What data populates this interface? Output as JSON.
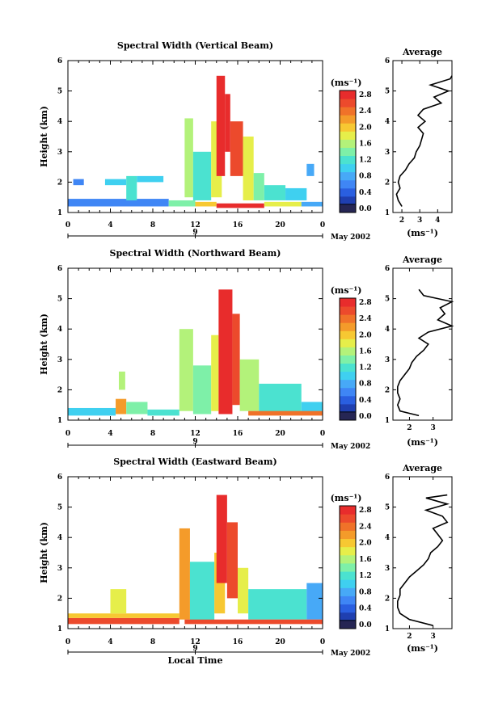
{
  "chart_data": [
    {
      "type": "heatmap",
      "title": "Spectral Width (Vertical Beam)",
      "xlabel": "",
      "ylabel": "Height (km)",
      "xlim": [
        0,
        24
      ],
      "ylim": [
        1,
        6
      ],
      "xticks": [
        "0",
        "4",
        "8",
        "12",
        "16",
        "20",
        "0"
      ],
      "yticks": [
        "1",
        "2",
        "3",
        "4",
        "5",
        "6"
      ],
      "date_marker": "9",
      "date_label": "May 2002",
      "units": "(ms⁻¹)",
      "colorbar_ticks": [
        "0.0",
        "0.4",
        "0.8",
        "1.2",
        "1.6",
        "2.0",
        "2.4",
        "2.8"
      ],
      "colorbar_range": [
        0,
        3.0
      ],
      "regions": [
        {
          "x0": 0.0,
          "x1": 9.5,
          "y0": 1.2,
          "y1": 1.45,
          "v": 0.7
        },
        {
          "x0": 9.5,
          "x1": 12.0,
          "y0": 1.2,
          "y1": 1.4,
          "v": 1.6
        },
        {
          "x0": 12.0,
          "x1": 14.0,
          "y0": 1.2,
          "y1": 1.35,
          "v": 2.2
        },
        {
          "x0": 14.0,
          "x1": 18.5,
          "y0": 1.15,
          "y1": 1.3,
          "v": 2.9
        },
        {
          "x0": 18.5,
          "x1": 22.0,
          "y0": 1.2,
          "y1": 1.35,
          "v": 2.0
        },
        {
          "x0": 22.0,
          "x1": 24.0,
          "y0": 1.2,
          "y1": 1.35,
          "v": 0.8
        },
        {
          "x0": 0.5,
          "x1": 1.5,
          "y0": 1.9,
          "y1": 2.1,
          "v": 0.7
        },
        {
          "x0": 3.5,
          "x1": 5.5,
          "y0": 1.9,
          "y1": 2.1,
          "v": 1.1
        },
        {
          "x0": 5.5,
          "x1": 6.5,
          "y0": 1.4,
          "y1": 2.2,
          "v": 1.3
        },
        {
          "x0": 6.5,
          "x1": 9.0,
          "y0": 2.0,
          "y1": 2.2,
          "v": 1.0
        },
        {
          "x0": 11.0,
          "x1": 11.8,
          "y0": 1.5,
          "y1": 4.1,
          "v": 1.8
        },
        {
          "x0": 11.8,
          "x1": 13.5,
          "y0": 1.4,
          "y1": 3.0,
          "v": 1.3
        },
        {
          "x0": 13.5,
          "x1": 14.5,
          "y0": 1.5,
          "y1": 4.0,
          "v": 1.9
        },
        {
          "x0": 14.0,
          "x1": 14.8,
          "y0": 2.2,
          "y1": 5.5,
          "v": 2.9
        },
        {
          "x0": 14.8,
          "x1": 15.3,
          "y0": 3.0,
          "y1": 4.9,
          "v": 2.9
        },
        {
          "x0": 15.3,
          "x1": 16.5,
          "y0": 2.2,
          "y1": 4.0,
          "v": 2.8
        },
        {
          "x0": 16.5,
          "x1": 17.5,
          "y0": 1.4,
          "y1": 3.5,
          "v": 2.0
        },
        {
          "x0": 17.5,
          "x1": 18.5,
          "y0": 1.4,
          "y1": 2.3,
          "v": 1.6
        },
        {
          "x0": 18.5,
          "x1": 20.5,
          "y0": 1.4,
          "y1": 1.9,
          "v": 1.2
        },
        {
          "x0": 20.5,
          "x1": 22.5,
          "y0": 1.4,
          "y1": 1.8,
          "v": 1.0
        },
        {
          "x0": 22.5,
          "x1": 23.2,
          "y0": 2.2,
          "y1": 2.6,
          "v": 0.9
        }
      ],
      "average": {
        "xlim": [
          1.5,
          4.8
        ],
        "xticks": [
          "2",
          "3",
          "4"
        ],
        "xlabel": "(ms⁻¹)",
        "title": "Average",
        "heights": [
          1.2,
          1.4,
          1.6,
          1.8,
          2.0,
          2.2,
          2.4,
          2.6,
          2.8,
          3.0,
          3.2,
          3.4,
          3.6,
          3.8,
          4.0,
          4.2,
          4.4,
          4.6,
          4.8,
          5.0,
          5.2,
          5.4,
          5.5
        ],
        "values": [
          2.0,
          1.8,
          1.7,
          1.9,
          1.8,
          1.9,
          2.2,
          2.4,
          2.7,
          2.8,
          3.0,
          3.1,
          3.2,
          2.9,
          3.3,
          2.9,
          3.2,
          4.2,
          3.8,
          4.6,
          3.6,
          4.7,
          4.8
        ]
      }
    },
    {
      "type": "heatmap",
      "title": "Spectral Width (Northward Beam)",
      "xlabel": "",
      "ylabel": "Height (km)",
      "xlim": [
        0,
        24
      ],
      "ylim": [
        1,
        6
      ],
      "xticks": [
        "0",
        "4",
        "8",
        "12",
        "16",
        "20",
        "0"
      ],
      "yticks": [
        "1",
        "2",
        "3",
        "4",
        "5",
        "6"
      ],
      "date_marker": "9",
      "date_label": "May 2002",
      "units": "(ms⁻¹)",
      "colorbar_ticks": [
        "0.0",
        "0.4",
        "0.8",
        "1.2",
        "1.6",
        "2.0",
        "2.4",
        "2.8"
      ],
      "colorbar_range": [
        0,
        3.0
      ],
      "regions": [
        {
          "x0": 0.0,
          "x1": 4.5,
          "y0": 1.15,
          "y1": 1.4,
          "v": 1.1
        },
        {
          "x0": 4.5,
          "x1": 5.5,
          "y0": 1.2,
          "y1": 1.7,
          "v": 2.3
        },
        {
          "x0": 5.5,
          "x1": 7.5,
          "y0": 1.2,
          "y1": 1.6,
          "v": 1.5
        },
        {
          "x0": 7.5,
          "x1": 10.5,
          "y0": 1.15,
          "y1": 1.35,
          "v": 1.3
        },
        {
          "x0": 4.8,
          "x1": 5.4,
          "y0": 2.0,
          "y1": 2.6,
          "v": 1.8
        },
        {
          "x0": 10.5,
          "x1": 11.8,
          "y0": 1.3,
          "y1": 4.0,
          "v": 1.7
        },
        {
          "x0": 11.8,
          "x1": 13.5,
          "y0": 1.2,
          "y1": 2.8,
          "v": 1.4
        },
        {
          "x0": 13.5,
          "x1": 14.2,
          "y0": 1.3,
          "y1": 3.8,
          "v": 1.9
        },
        {
          "x0": 14.2,
          "x1": 15.5,
          "y0": 1.2,
          "y1": 5.3,
          "v": 2.9
        },
        {
          "x0": 15.5,
          "x1": 16.2,
          "y0": 1.5,
          "y1": 4.5,
          "v": 2.7
        },
        {
          "x0": 16.2,
          "x1": 18.0,
          "y0": 1.3,
          "y1": 3.0,
          "v": 1.8
        },
        {
          "x0": 18.0,
          "x1": 22.0,
          "y0": 1.2,
          "y1": 2.2,
          "v": 1.3
        },
        {
          "x0": 22.0,
          "x1": 24.0,
          "y0": 1.2,
          "y1": 1.6,
          "v": 1.1
        },
        {
          "x0": 17.0,
          "x1": 24.0,
          "y0": 1.15,
          "y1": 1.3,
          "v": 2.6
        }
      ],
      "average": {
        "xlim": [
          1.3,
          3.8
        ],
        "xticks": [
          "2",
          "3"
        ],
        "xlabel": "(ms⁻¹)",
        "title": "Average",
        "heights": [
          1.15,
          1.3,
          1.5,
          1.7,
          1.9,
          2.1,
          2.3,
          2.5,
          2.7,
          2.9,
          3.1,
          3.3,
          3.5,
          3.7,
          3.9,
          4.1,
          4.3,
          4.5,
          4.7,
          4.9,
          5.1,
          5.3
        ],
        "values": [
          2.4,
          1.6,
          1.5,
          1.6,
          1.5,
          1.5,
          1.6,
          1.8,
          2.0,
          2.1,
          2.3,
          2.6,
          2.8,
          2.4,
          2.8,
          3.8,
          3.2,
          3.5,
          3.3,
          3.8,
          2.6,
          2.4
        ]
      }
    },
    {
      "type": "heatmap",
      "title": "Spectral Width (Eastward Beam)",
      "xlabel": "Local Time",
      "ylabel": "Height (km)",
      "xlim": [
        0,
        24
      ],
      "ylim": [
        1,
        6
      ],
      "xticks": [
        "0",
        "4",
        "8",
        "12",
        "16",
        "20",
        "0"
      ],
      "yticks": [
        "1",
        "2",
        "3",
        "4",
        "5",
        "6"
      ],
      "date_marker": "9",
      "date_label": "May 2002",
      "units": "(ms⁻¹)",
      "colorbar_ticks": [
        "0.0",
        "0.4",
        "0.8",
        "1.2",
        "1.6",
        "2.0",
        "2.4",
        "2.8"
      ],
      "colorbar_range": [
        0,
        3.0
      ],
      "regions": [
        {
          "x0": 0.0,
          "x1": 10.5,
          "y0": 1.15,
          "y1": 1.35,
          "v": 2.7
        },
        {
          "x0": 0.0,
          "x1": 10.5,
          "y0": 1.35,
          "y1": 1.5,
          "v": 2.1
        },
        {
          "x0": 4.0,
          "x1": 5.5,
          "y0": 1.5,
          "y1": 2.3,
          "v": 2.0
        },
        {
          "x0": 10.5,
          "x1": 11.5,
          "y0": 1.3,
          "y1": 4.3,
          "v": 2.4
        },
        {
          "x0": 11.5,
          "x1": 13.8,
          "y0": 1.2,
          "y1": 3.2,
          "v": 1.3
        },
        {
          "x0": 13.8,
          "x1": 14.8,
          "y0": 1.5,
          "y1": 3.5,
          "v": 2.2
        },
        {
          "x0": 14.0,
          "x1": 15.0,
          "y0": 2.5,
          "y1": 5.4,
          "v": 2.9
        },
        {
          "x0": 15.0,
          "x1": 16.0,
          "y0": 2.0,
          "y1": 4.5,
          "v": 2.8
        },
        {
          "x0": 16.0,
          "x1": 17.0,
          "y0": 1.5,
          "y1": 3.0,
          "v": 2.0
        },
        {
          "x0": 17.0,
          "x1": 22.5,
          "y0": 1.3,
          "y1": 2.3,
          "v": 1.3
        },
        {
          "x0": 22.5,
          "x1": 24.0,
          "y0": 1.3,
          "y1": 2.5,
          "v": 0.9
        },
        {
          "x0": 11.0,
          "x1": 24.0,
          "y0": 1.15,
          "y1": 1.3,
          "v": 2.8
        }
      ],
      "average": {
        "xlim": [
          1.3,
          3.8
        ],
        "xticks": [
          "2",
          "3"
        ],
        "xlabel": "(ms⁻¹)",
        "title": "Average",
        "heights": [
          1.1,
          1.3,
          1.5,
          1.7,
          1.9,
          2.1,
          2.3,
          2.5,
          2.7,
          2.9,
          3.1,
          3.3,
          3.5,
          3.7,
          3.9,
          4.1,
          4.3,
          4.5,
          4.7,
          4.9,
          5.1,
          5.3,
          5.4
        ],
        "values": [
          3.0,
          2.0,
          1.6,
          1.5,
          1.5,
          1.6,
          1.6,
          1.8,
          2.0,
          2.3,
          2.6,
          2.8,
          2.9,
          3.2,
          3.4,
          3.2,
          3.0,
          3.6,
          3.4,
          2.7,
          3.6,
          2.7,
          3.6
        ]
      }
    }
  ]
}
